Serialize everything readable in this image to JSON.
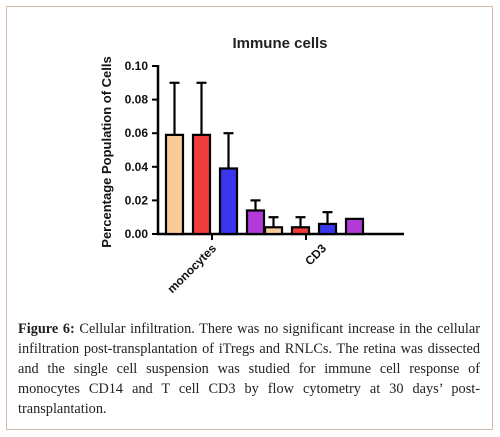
{
  "chart_data": {
    "type": "bar",
    "title": "Immune cells",
    "ylabel": "Percentage Population of Cells",
    "xlabel": "",
    "ylim": [
      0,
      0.1
    ],
    "yticks": [
      "0.00",
      "0.02",
      "0.04",
      "0.06",
      "0.08",
      "0.10"
    ],
    "categories": [
      "monocytes",
      "CD3"
    ],
    "series": [
      {
        "color": "#f9cb98",
        "values": [
          0.059,
          0.004
        ],
        "error": [
          0.031,
          0.006
        ]
      },
      {
        "color": "#f23c3c",
        "values": [
          0.059,
          0.004
        ],
        "error": [
          0.031,
          0.006
        ]
      },
      {
        "color": "#3a36ee",
        "values": [
          0.039,
          0.006
        ],
        "error": [
          0.021,
          0.007
        ]
      },
      {
        "color": "#b13ad9",
        "values": [
          0.014,
          0.009
        ],
        "error": [
          0.006,
          0.0
        ]
      }
    ],
    "grid": false,
    "legend": "none"
  },
  "caption": {
    "label": "Figure 6:",
    "text": " Cellular infiltration. There was no significant increase in the cellular infiltration post-transplantation of iTregs and RNLCs. The retina was dissected and the single cell suspension was studied for immune cell response of monocytes CD14 and T cell CD3 by flow cytometry at 30 days’ post-transplantation."
  }
}
